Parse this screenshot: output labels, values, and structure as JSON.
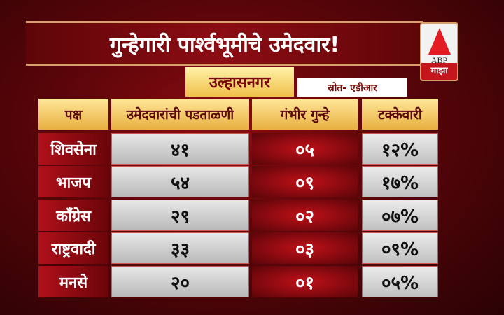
{
  "title": "गुन्हेगारी पार्श्वभूमीचे उमेदवार!",
  "logo": {
    "brand": "ABP",
    "sub": "माझा",
    "accent": "#e31b23"
  },
  "city": "उल्हासनगर",
  "source": "स्रोत- एडीआर",
  "table": {
    "headers": [
      "पक्ष",
      "उमेदवारांची पडताळणी",
      "गंभीर गुन्हे",
      "टक्केवारी"
    ],
    "rows": [
      {
        "party": "शिवसेना",
        "candidates": "४१",
        "serious": "०५",
        "percent": "१२%"
      },
      {
        "party": "भाजप",
        "candidates": "५४",
        "serious": "०९",
        "percent": "१७%"
      },
      {
        "party": "काँग्रेस",
        "candidates": "२९",
        "serious": "०२",
        "percent": "०७%"
      },
      {
        "party": "राष्ट्रवादी",
        "candidates": "३३",
        "serious": "०३",
        "percent": "०९%"
      },
      {
        "party": "मनसे",
        "candidates": "२०",
        "serious": "०१",
        "percent": "०५%"
      }
    ]
  }
}
